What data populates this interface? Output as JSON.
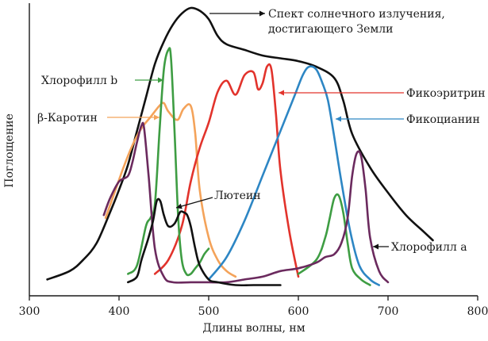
{
  "chart_data": {
    "type": "line",
    "title": "",
    "xlabel": "Длины волны, нм",
    "ylabel": "Поглощение",
    "xlim": [
      300,
      800
    ],
    "ylim": [
      0,
      1
    ],
    "xticks": [
      300,
      400,
      500,
      600,
      700,
      800
    ],
    "yticks": [],
    "grid": false,
    "legend": "none",
    "series": [
      {
        "key": "solar",
        "name": "Спект солнечного излучения, достигающего Земли",
        "color": "#111111",
        "x": [
          320,
          345,
          360,
          375,
          390,
          400,
          410,
          420,
          430,
          440,
          450,
          460,
          470,
          480,
          490,
          500,
          510,
          520,
          540,
          560,
          580,
          600,
          620,
          640,
          650,
          660,
          680,
          700,
          720,
          740,
          750
        ],
        "y": [
          0.03,
          0.06,
          0.1,
          0.16,
          0.27,
          0.35,
          0.44,
          0.56,
          0.68,
          0.8,
          0.88,
          0.94,
          0.98,
          1.0,
          0.99,
          0.96,
          0.9,
          0.87,
          0.85,
          0.83,
          0.82,
          0.81,
          0.79,
          0.75,
          0.67,
          0.55,
          0.43,
          0.34,
          0.26,
          0.2,
          0.17
        ]
      },
      {
        "key": "chl_b",
        "name": "Хлорофилл b",
        "color": "#3e9d43",
        "x": [
          410,
          420,
          430,
          435,
          440,
          445,
          450,
          455,
          458,
          462,
          466,
          470,
          475,
          480,
          485,
          490,
          495,
          500
        ],
        "y": [
          0.05,
          0.08,
          0.22,
          0.25,
          0.3,
          0.55,
          0.78,
          0.85,
          0.82,
          0.55,
          0.25,
          0.1,
          0.05,
          0.05,
          0.07,
          0.09,
          0.12,
          0.14
        ]
      },
      {
        "key": "beta_carotene",
        "name": "β-Каротин",
        "color": "#f4a35a",
        "x": [
          385,
          395,
          405,
          415,
          425,
          435,
          445,
          450,
          455,
          465,
          472,
          480,
          485,
          490,
          500,
          510,
          520,
          530
        ],
        "y": [
          0.25,
          0.34,
          0.43,
          0.51,
          0.57,
          0.61,
          0.65,
          0.66,
          0.63,
          0.6,
          0.64,
          0.65,
          0.55,
          0.35,
          0.18,
          0.1,
          0.06,
          0.04
        ]
      },
      {
        "key": "lutein",
        "name": "Лютеин",
        "color": "#111111",
        "x": [
          410,
          420,
          425,
          432,
          438,
          442,
          446,
          450,
          455,
          462,
          468,
          472,
          476,
          480,
          485,
          490,
          500,
          510,
          530,
          550,
          580
        ],
        "y": [
          0.02,
          0.04,
          0.1,
          0.17,
          0.24,
          0.31,
          0.31,
          0.26,
          0.22,
          0.23,
          0.27,
          0.27,
          0.26,
          0.22,
          0.14,
          0.08,
          0.03,
          0.02,
          0.01,
          0.01,
          0.01
        ]
      },
      {
        "key": "chl_a",
        "name": "Хлорофилл a",
        "color": "#6b2a5e",
        "x": [
          383,
          390,
          400,
          410,
          415,
          420,
          425,
          428,
          433,
          440,
          450,
          460,
          480,
          500,
          520,
          540,
          560,
          580,
          600,
          620,
          630,
          640,
          648,
          655,
          660,
          665,
          670,
          675,
          680,
          690,
          700
        ],
        "y": [
          0.26,
          0.32,
          0.38,
          0.4,
          0.45,
          0.52,
          0.58,
          0.57,
          0.4,
          0.14,
          0.04,
          0.02,
          0.02,
          0.02,
          0.02,
          0.03,
          0.04,
          0.06,
          0.07,
          0.09,
          0.11,
          0.12,
          0.16,
          0.25,
          0.4,
          0.48,
          0.47,
          0.35,
          0.18,
          0.06,
          0.02
        ]
      },
      {
        "key": "phycoerythrin",
        "name": "Фикоэритрин",
        "color": "#e2332c",
        "x": [
          440,
          455,
          470,
          480,
          490,
          500,
          510,
          520,
          530,
          540,
          550,
          555,
          560,
          565,
          570,
          575,
          580,
          590,
          600
        ],
        "y": [
          0.05,
          0.1,
          0.22,
          0.38,
          0.5,
          0.59,
          0.7,
          0.74,
          0.69,
          0.76,
          0.77,
          0.71,
          0.73,
          0.79,
          0.78,
          0.62,
          0.42,
          0.2,
          0.04
        ]
      },
      {
        "key": "phycocyanin",
        "name": "Фикоцианин",
        "color": "#2d86c4",
        "x": [
          500,
          520,
          540,
          560,
          580,
          595,
          605,
          612,
          620,
          627,
          633,
          640,
          648,
          658,
          668,
          680,
          690
        ],
        "y": [
          0.03,
          0.11,
          0.24,
          0.4,
          0.56,
          0.68,
          0.76,
          0.79,
          0.78,
          0.73,
          0.67,
          0.54,
          0.38,
          0.2,
          0.08,
          0.03,
          0.01
        ]
      },
      {
        "key": "chl_a_red",
        "name": "",
        "color": "#3e9d43",
        "x": [
          600,
          620,
          630,
          635,
          640,
          645,
          650,
          655,
          660,
          670,
          680
        ],
        "y": [
          0.05,
          0.1,
          0.18,
          0.25,
          0.32,
          0.33,
          0.27,
          0.16,
          0.07,
          0.03,
          0.01
        ]
      }
    ],
    "annotations": [
      {
        "key": "solar",
        "lines": [
          "Спект солнечного излучения,",
          "достигающего Земли"
        ]
      },
      {
        "key": "chl_b",
        "lines": [
          "Хлорофилл b"
        ]
      },
      {
        "key": "beta_carotene",
        "lines": [
          "β-Каротин"
        ]
      },
      {
        "key": "lutein",
        "lines": [
          "Лютеин"
        ]
      },
      {
        "key": "phycoerythrin",
        "lines": [
          "Фикоэритрин"
        ]
      },
      {
        "key": "phycocyanin",
        "lines": [
          "Фикоцианин"
        ]
      },
      {
        "key": "chl_a",
        "lines": [
          "Хлорофилл a"
        ]
      }
    ]
  }
}
